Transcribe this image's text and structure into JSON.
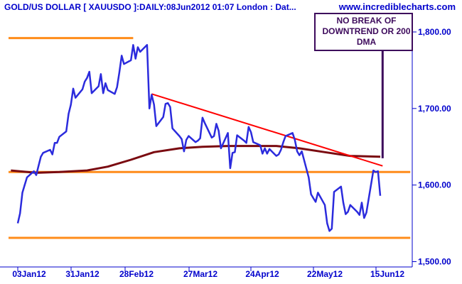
{
  "chart_data": {
    "type": "line",
    "title": "GOLD/US DOLLAR [ XAUUSDO ]:DAILY:08Jun2012 01:07 London : Dat...",
    "watermark": "www.incrediblecharts.com",
    "xlabel": "",
    "ylabel": "",
    "ylim": [
      1493,
      1825
    ],
    "x_ticks": [
      "03Jan12",
      "31Jan12",
      "28Feb12",
      "27Mar12",
      "24Apr12",
      "22May12",
      "15Jun12"
    ],
    "y_ticks": [
      {
        "value": 1500,
        "label": "1,500.00"
      },
      {
        "value": 1600,
        "label": "1,600.00"
      },
      {
        "value": 1700,
        "label": "1,700.00"
      },
      {
        "value": 1800,
        "label": "1,800.00"
      }
    ],
    "series": [
      {
        "role": "price",
        "color": "#2b2bdd",
        "x": [
          "2012-01-02",
          "2012-01-03",
          "2012-01-04",
          "2012-01-05",
          "2012-01-06",
          "2012-01-09",
          "2012-01-10",
          "2012-01-11",
          "2012-01-12",
          "2012-01-13",
          "2012-01-16",
          "2012-01-17",
          "2012-01-18",
          "2012-01-19",
          "2012-01-20",
          "2012-01-23",
          "2012-01-24",
          "2012-01-25",
          "2012-01-26",
          "2012-01-27",
          "2012-01-30",
          "2012-01-31",
          "2012-02-01",
          "2012-02-02",
          "2012-02-03",
          "2012-02-06",
          "2012-02-07",
          "2012-02-08",
          "2012-02-09",
          "2012-02-10",
          "2012-02-13",
          "2012-02-14",
          "2012-02-15",
          "2012-02-16",
          "2012-02-17",
          "2012-02-20",
          "2012-02-21",
          "2012-02-22",
          "2012-02-23",
          "2012-02-24",
          "2012-02-27",
          "2012-02-28",
          "2012-02-29",
          "2012-03-01",
          "2012-03-02",
          "2012-03-05",
          "2012-03-06",
          "2012-03-07",
          "2012-03-08",
          "2012-03-09",
          "2012-03-12",
          "2012-03-13",
          "2012-03-14",
          "2012-03-15",
          "2012-03-16",
          "2012-03-19",
          "2012-03-20",
          "2012-03-21",
          "2012-03-22",
          "2012-03-23",
          "2012-03-26",
          "2012-03-27",
          "2012-03-28",
          "2012-03-29",
          "2012-03-30",
          "2012-04-02",
          "2012-04-03",
          "2012-04-04",
          "2012-04-05",
          "2012-04-06",
          "2012-04-09",
          "2012-04-10",
          "2012-04-11",
          "2012-04-12",
          "2012-04-13",
          "2012-04-16",
          "2012-04-17",
          "2012-04-18",
          "2012-04-19",
          "2012-04-20",
          "2012-04-23",
          "2012-04-24",
          "2012-04-25",
          "2012-04-26",
          "2012-04-27",
          "2012-04-30",
          "2012-05-01",
          "2012-05-02",
          "2012-05-03",
          "2012-05-04",
          "2012-05-07",
          "2012-05-08",
          "2012-05-09",
          "2012-05-10",
          "2012-05-11",
          "2012-05-14",
          "2012-05-15",
          "2012-05-16",
          "2012-05-17",
          "2012-05-18",
          "2012-05-21",
          "2012-05-22",
          "2012-05-23",
          "2012-05-24",
          "2012-05-25",
          "2012-05-28",
          "2012-05-29",
          "2012-05-30",
          "2012-05-31",
          "2012-06-01",
          "2012-06-04",
          "2012-06-05",
          "2012-06-06",
          "2012-06-07"
        ],
        "values": [
          1550,
          1563,
          1590,
          1600,
          1610,
          1618,
          1613,
          1625,
          1637,
          1642,
          1646,
          1640,
          1655,
          1655,
          1663,
          1670,
          1693,
          1705,
          1726,
          1714,
          1725,
          1735,
          1740,
          1748,
          1720,
          1729,
          1745,
          1720,
          1733,
          1724,
          1719,
          1728,
          1747,
          1769,
          1758,
          1763,
          1783,
          1765,
          1780,
          1774,
          1783,
          1700,
          1718,
          1705,
          1677,
          1689,
          1706,
          1707,
          1702,
          1674,
          1664,
          1660,
          1644,
          1659,
          1664,
          1656,
          1658,
          1661,
          1688,
          1681,
          1662,
          1664,
          1680,
          1671,
          1648,
          1668,
          1622,
          1642,
          1643,
          1665,
          1658,
          1655,
          1676,
          1669,
          1656,
          1652,
          1641,
          1648,
          1641,
          1647,
          1638,
          1640,
          1646,
          1656,
          1664,
          1668,
          1659,
          1644,
          1639,
          1644,
          1610,
          1588,
          1583,
          1578,
          1590,
          1574,
          1550,
          1540,
          1543,
          1591,
          1598,
          1577,
          1562,
          1565,
          1574,
          1565,
          1561,
          1577,
          1557,
          1564,
          1619,
          1617,
          1618,
          1586
        ]
      },
      {
        "role": "200-day moving average",
        "color": "#7a0a10",
        "x": [
          "2011-12-30",
          "2012-01-10",
          "2012-01-20",
          "2012-02-01",
          "2012-02-10",
          "2012-02-20",
          "2012-03-01",
          "2012-03-12",
          "2012-03-22",
          "2012-04-02",
          "2012-04-12",
          "2012-04-23",
          "2012-05-03",
          "2012-05-14",
          "2012-05-25",
          "2012-06-07"
        ],
        "values": [
          1619,
          1616,
          1617,
          1619,
          1624,
          1633,
          1643,
          1648,
          1650,
          1651,
          1651,
          1651,
          1648,
          1643,
          1638,
          1637
        ]
      }
    ],
    "trendline": {
      "color": "#ff0000",
      "from": {
        "x": "2012-02-29",
        "y": 1719
      },
      "to": {
        "x": "2012-06-08",
        "y": 1625
      }
    },
    "horizontal_lines": [
      {
        "color": "#ff8c1a",
        "value": 1792,
        "from": "2011-12-29",
        "to": "2012-02-21"
      },
      {
        "color": "#ff8c1a",
        "value": 1617,
        "from": "2011-12-29",
        "to": "2012-06-20"
      },
      {
        "color": "#ff8c1a",
        "value": 1531,
        "from": "2011-12-29",
        "to": "2012-06-20"
      }
    ],
    "annotation": {
      "lines": [
        "NO BREAK OF",
        "DOWNTREND OR 200",
        "DMA"
      ],
      "color": "#3d0a5c",
      "pointer_target": {
        "x": "2012-06-08",
        "y": 1635
      }
    }
  }
}
